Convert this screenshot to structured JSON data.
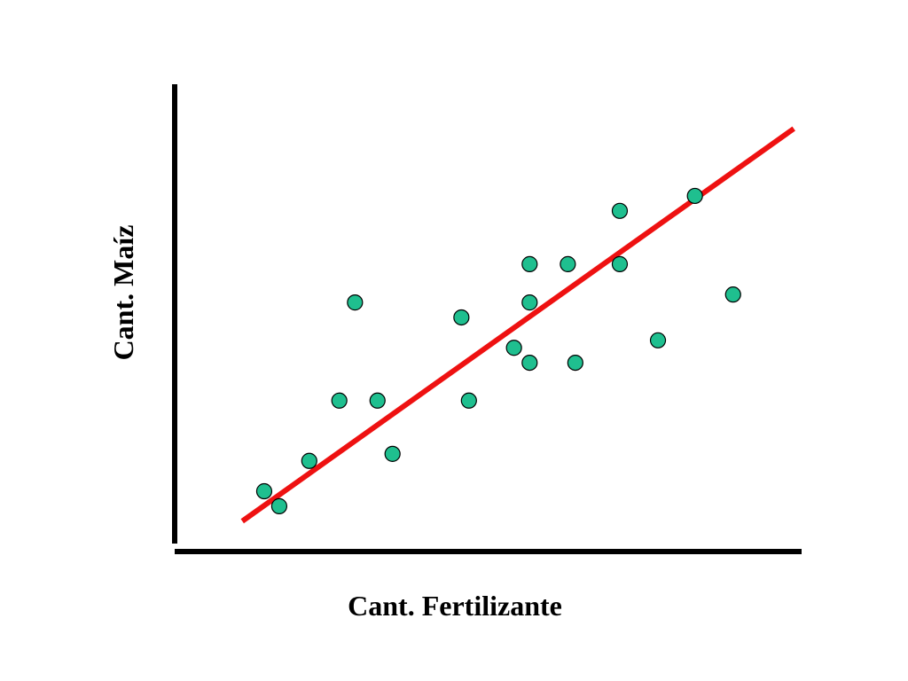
{
  "chart_data": {
    "type": "scatter",
    "x_label": "Cant. Fertilizante",
    "y_label": "Cant. Maíz",
    "xlim": [
      0,
      100
    ],
    "ylim": [
      0,
      100
    ],
    "series": [
      {
        "color": "#1fbf8f",
        "x": [
          14.3,
          16.7,
          21.5,
          26.3,
          28.8,
          32.4,
          34.8,
          45.8,
          47.0,
          54.2,
          56.7,
          56.7,
          56.7,
          62.8,
          64.0,
          71.1,
          71.1,
          77.2,
          83.1,
          89.2
        ],
        "values": [
          12.9,
          9.7,
          19.4,
          32.3,
          53.3,
          32.3,
          20.9,
          50.1,
          32.3,
          43.6,
          61.5,
          53.3,
          40.4,
          61.5,
          40.4,
          72.9,
          61.5,
          45.2,
          76.1,
          55.0
        ]
      }
    ],
    "trendline": {
      "color": "#ee1111",
      "x": [
        10.8,
        98.9
      ],
      "values": [
        6.5,
        90.5
      ]
    }
  }
}
